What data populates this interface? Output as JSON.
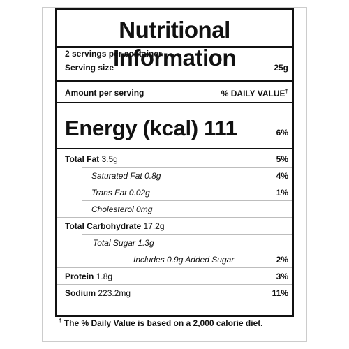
{
  "title": "Nutritional Information",
  "servings_per_container": "2 servings per container",
  "serving_size_label": "Serving size",
  "serving_size_value": "25g",
  "amount_per_serving": "Amount per serving",
  "daily_value_header": "% DAILY VALUE",
  "dagger": "†",
  "energy_label": "Energy (kcal)",
  "energy_value": "111",
  "energy_dv": "6%",
  "rows": [
    {
      "label": "Total Fat",
      "amount": "3.5g",
      "dv": "5%"
    },
    {
      "label": "Saturated Fat",
      "amount": "0.8g",
      "dv": "4%"
    },
    {
      "label": "Trans Fat",
      "amount": "0.02g",
      "dv": "1%"
    },
    {
      "label": "Cholesterol",
      "amount": "0mg",
      "dv": ""
    },
    {
      "label": "Total Carbohydrate",
      "amount": "17.2g",
      "dv": ""
    },
    {
      "label": "Total Sugar",
      "amount": "1.3g",
      "dv": ""
    },
    {
      "label": "Includes 0.9g Added Sugar",
      "amount": "",
      "dv": "2%"
    },
    {
      "label": "Protein",
      "amount": "1.8g",
      "dv": "3%"
    },
    {
      "label": "Sodium",
      "amount": "223.2mg",
      "dv": "11%"
    }
  ],
  "footnote": "The % Daily Value is based on a 2,000 calorie diet."
}
